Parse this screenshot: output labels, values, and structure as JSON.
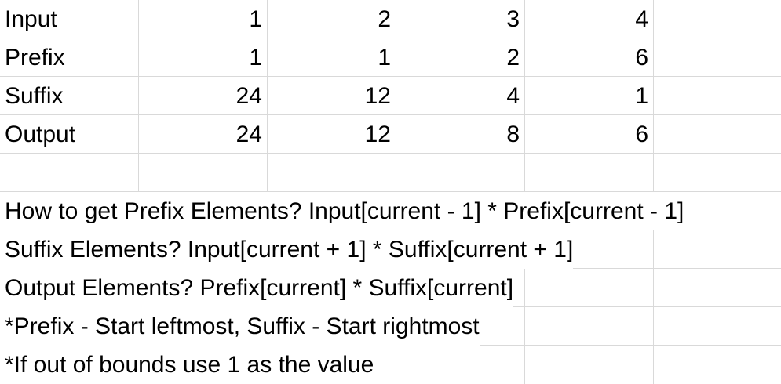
{
  "table": {
    "rows": [
      {
        "label": "Input",
        "values": [
          "1",
          "2",
          "3",
          "4"
        ]
      },
      {
        "label": "Prefix",
        "values": [
          "1",
          "1",
          "2",
          "6"
        ]
      },
      {
        "label": "Suffix",
        "values": [
          "24",
          "12",
          "4",
          "1"
        ]
      },
      {
        "label": "Output",
        "values": [
          "24",
          "12",
          "8",
          "6"
        ]
      }
    ]
  },
  "notes": [
    "How to get Prefix Elements? Input[current - 1] * Prefix[current - 1]",
    "Suffix Elements? Input[current + 1] * Suffix[current + 1]",
    "Output Elements? Prefix[current] * Suffix[current]",
    "*Prefix - Start leftmost, Suffix - Start rightmost",
    "*If out of bounds use 1 as the value"
  ],
  "colors": {
    "gridline": "#d9d9d9",
    "text": "#000000",
    "background": "#ffffff"
  }
}
